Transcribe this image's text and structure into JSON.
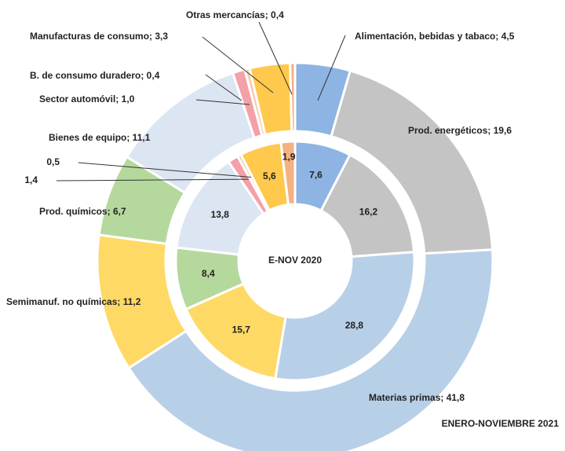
{
  "chart_data": {
    "type": "donut",
    "categories": [
      "Alimentación, bebidas y tabaco",
      "Prod. energéticos",
      "Materias primas",
      "Semimanuf. no químicas",
      "Prod. químicos",
      "Bienes de equipo",
      "Sector automóvil",
      "B. de consumo duradero",
      "Manufacturas de consumo",
      "Otras mercancías"
    ],
    "colors": [
      "#8db4e2",
      "#c4c4c4",
      "#b8cfe8",
      "#ffd966",
      "#b5d99c",
      "#dce6f2",
      "#f4a0a8",
      "#f8cbad",
      "#ffc94d",
      "#f4b183"
    ],
    "series": [
      {
        "name": "ENERO-NOVIEMBRE 2021",
        "ring": "outer",
        "values": [
          4.5,
          19.6,
          41.8,
          11.2,
          6.7,
          11.1,
          1.0,
          0.4,
          3.3,
          0.4
        ],
        "value_labels": [
          "Alimentación, bebidas y tabaco; 4,5",
          "Prod. energéticos; 19,6",
          "Materias primas; 41,8",
          "Semimanuf. no químicas; 11,2",
          "Prod. químicos; 6,7",
          "Bienes de equipo; 11,1",
          "Sector automóvil; 1,0",
          "B. de consumo duradero; 0,4",
          "Manufacturas de consumo; 3,3",
          "Otras mercancías; 0,4"
        ]
      },
      {
        "name": "E-NOV 2020",
        "ring": "inner",
        "values": [
          7.6,
          16.2,
          28.8,
          15.7,
          8.4,
          13.8,
          1.4,
          0.5,
          5.6,
          1.9
        ],
        "value_labels": [
          "7,6",
          "16,2",
          "28,8",
          "15,7",
          "8,4",
          "13,8",
          "1,4",
          "0,5",
          "5,6",
          "1,9"
        ]
      }
    ]
  }
}
